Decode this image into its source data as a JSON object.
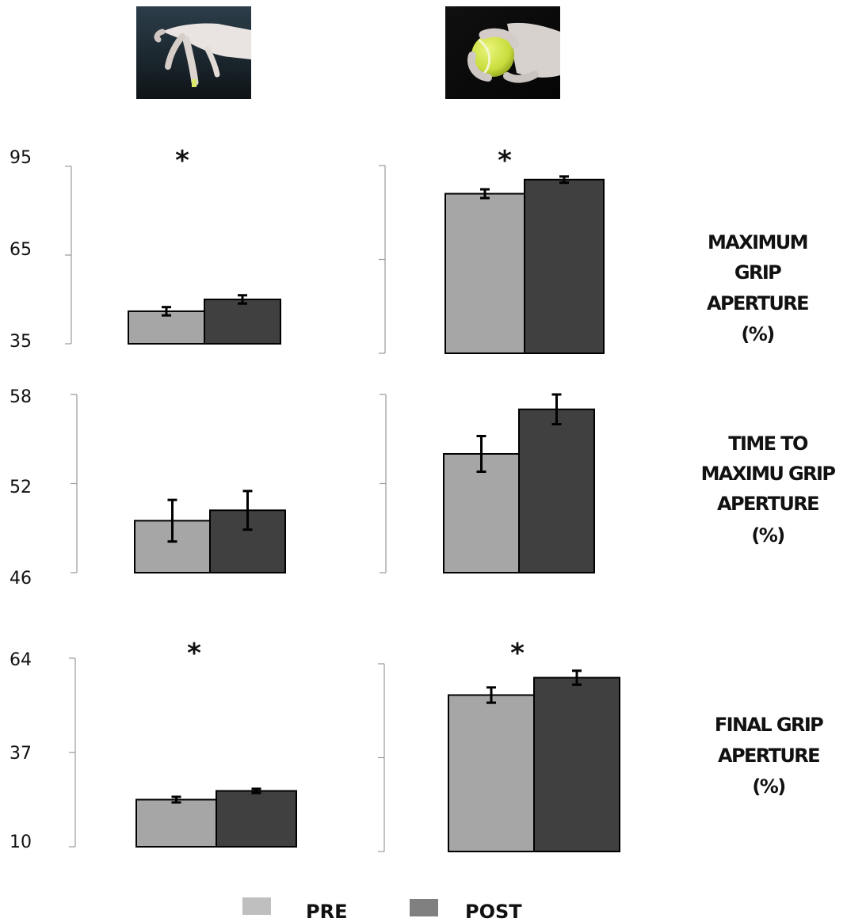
{
  "images": [
    {
      "name": "precision-grip-photo",
      "description_icon": "hand-pinching-small-object-icon"
    },
    {
      "name": "power-grip-photo",
      "description_icon": "hand-holding-tennis-ball-icon"
    }
  ],
  "colors": {
    "pre": "#a6a6a6",
    "post": "#404040",
    "pre_legend": "#bfbfbf",
    "post_legend": "#808080"
  },
  "legend": [
    {
      "label": "PRE",
      "color": "#bfbfbf"
    },
    {
      "label": "POST",
      "color": "#808080"
    }
  ],
  "significance_marker": "*",
  "chart_data": [
    {
      "type": "bar",
      "row_label": [
        "MAXIMUM",
        "GRIP",
        "APERTURE",
        "(%)"
      ],
      "yticks": [
        "95",
        "65",
        "35"
      ],
      "ylim": [
        35,
        95
      ],
      "panels": [
        {
          "categories": [
            "PRE",
            "POST"
          ],
          "values": [
            46,
            50
          ],
          "errors": [
            1.4,
            1.4
          ],
          "significant": true
        },
        {
          "categories": [
            "PRE",
            "POST"
          ],
          "values": [
            86,
            90.5
          ],
          "errors": [
            1.4,
            1.0
          ],
          "significant": true
        }
      ]
    },
    {
      "type": "bar",
      "row_label": [
        "TIME TO",
        "MAXIMU GRIP",
        "APERTURE",
        "(%)"
      ],
      "yticks": [
        "58",
        "52",
        "46"
      ],
      "ylim": [
        46,
        58
      ],
      "panels": [
        {
          "categories": [
            "PRE",
            "POST"
          ],
          "values": [
            49.5,
            50.2
          ],
          "errors": [
            1.4,
            1.3
          ],
          "significant": false
        },
        {
          "categories": [
            "PRE",
            "POST"
          ],
          "values": [
            54,
            57
          ],
          "errors": [
            1.2,
            1.0
          ],
          "significant": false
        }
      ]
    },
    {
      "type": "bar",
      "row_label": [
        "FINAL GRIP",
        "APERTURE",
        "(%)"
      ],
      "yticks": [
        "64",
        "37",
        "10"
      ],
      "ylim": [
        10,
        64
      ],
      "panels": [
        {
          "categories": [
            "PRE",
            "POST"
          ],
          "values": [
            23.5,
            26
          ],
          "errors": [
            0.8,
            0.6
          ],
          "significant": true
        },
        {
          "categories": [
            "PRE",
            "POST"
          ],
          "values": [
            55,
            60
          ],
          "errors": [
            2.2,
            2.0
          ],
          "significant": true
        }
      ]
    }
  ]
}
